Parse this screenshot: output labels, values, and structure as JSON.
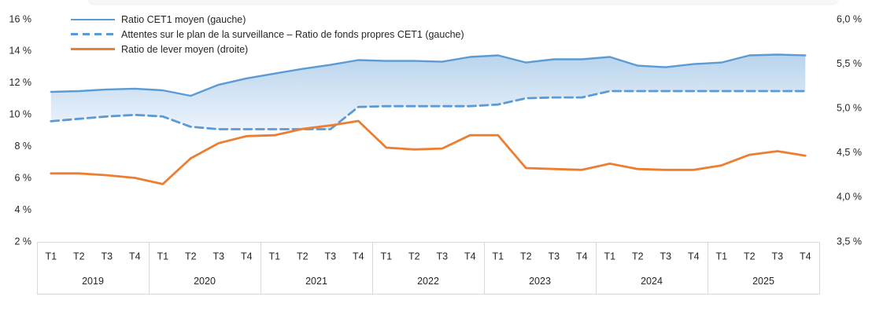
{
  "chart_data": {
    "type": "line",
    "title": "",
    "x_axis": {
      "years": [
        "2019",
        "2020",
        "2021",
        "2022",
        "2023",
        "2024",
        "2025"
      ],
      "quarter_labels": [
        "T1",
        "T2",
        "T3",
        "T4"
      ]
    },
    "left_axis": {
      "min": 2,
      "max": 16,
      "tick_values": [
        16,
        14,
        12,
        10,
        8,
        6,
        4,
        2
      ],
      "tick_labels": [
        "16 %",
        "14 %",
        "12 %",
        "10 %",
        "8 %",
        "6 %",
        "4 %",
        "2 %"
      ]
    },
    "right_axis": {
      "min": 3.5,
      "max": 6.0,
      "tick_values": [
        6.0,
        5.5,
        5.0,
        4.5,
        4.0,
        3.5
      ],
      "tick_labels": [
        "6,0 %",
        "5,5 %",
        "5,0 %",
        "4,5 %",
        "4,0 %",
        "3,5 %"
      ]
    },
    "series": [
      {
        "name": "Ratio CET1 moyen (gauche)",
        "axis": "left",
        "style": "solid",
        "color": "#5B9BD5",
        "width": 2.4,
        "values": [
          11.45,
          11.5,
          11.6,
          11.65,
          11.55,
          11.2,
          11.9,
          12.3,
          12.6,
          12.9,
          13.15,
          13.45,
          13.4,
          13.4,
          13.35,
          13.65,
          13.75,
          13.3,
          13.5,
          13.5,
          13.65,
          13.1,
          13.0,
          13.2,
          13.3,
          13.75,
          13.8,
          13.75
        ]
      },
      {
        "name": "Attentes sur le plan de la surveillance – Ratio de fonds propres CET1 (gauche)",
        "axis": "left",
        "style": "dashed",
        "color": "#5B9BD5",
        "width": 2.8,
        "values": [
          9.6,
          9.75,
          9.9,
          10.0,
          9.9,
          9.25,
          9.1,
          9.1,
          9.1,
          9.1,
          9.1,
          10.5,
          10.55,
          10.55,
          10.55,
          10.55,
          10.65,
          11.05,
          11.1,
          11.1,
          11.5,
          11.5,
          11.5,
          11.5,
          11.5,
          11.5,
          11.5,
          11.5
        ]
      },
      {
        "name": "Ratio de lever moyen (droite)",
        "axis": "right",
        "style": "solid",
        "color": "#ED7D31",
        "width": 2.8,
        "values": [
          4.27,
          4.27,
          4.25,
          4.22,
          4.15,
          4.44,
          4.61,
          4.69,
          4.7,
          4.77,
          4.81,
          4.86,
          4.56,
          4.54,
          4.55,
          4.7,
          4.7,
          4.33,
          4.32,
          4.31,
          4.38,
          4.32,
          4.31,
          4.31,
          4.36,
          4.48,
          4.52,
          4.47
        ]
      }
    ],
    "band": {
      "between": [
        0,
        1
      ],
      "gradient_top": "#B9D4ED",
      "gradient_bottom": "#ECF3FB"
    },
    "layout_hints": {
      "grid": "off",
      "legend_position": "top-left"
    },
    "colors": {
      "blue": "#5B9BD5",
      "orange": "#ED7D31",
      "table_border": "#D9D9D9",
      "text": "#262626"
    }
  }
}
